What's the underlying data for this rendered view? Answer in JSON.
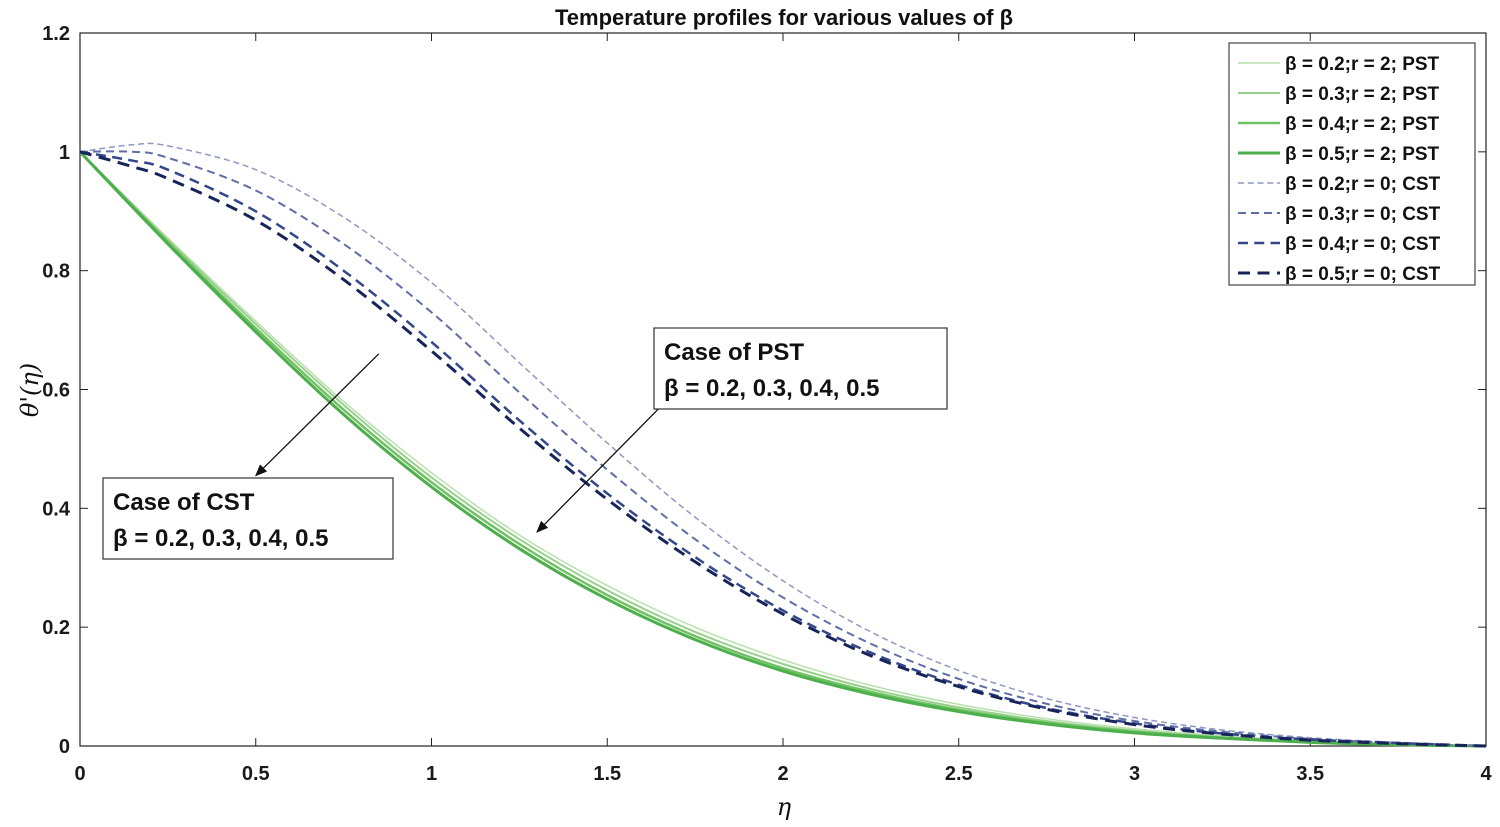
{
  "chart_data": {
    "type": "line",
    "title": "Temperature profiles for various values of β",
    "xlabel": "η",
    "ylabel": "θ'(η)",
    "xlim": [
      0,
      4
    ],
    "ylim": [
      0,
      1.2
    ],
    "x_ticks": [
      "0",
      "0.5",
      "1",
      "1.5",
      "2",
      "2.5",
      "3",
      "3.5",
      "4"
    ],
    "y_ticks": [
      "0",
      "0.2",
      "0.4",
      "0.6",
      "0.8",
      "1",
      "1.2"
    ],
    "legend_position": "top-right",
    "series": [
      {
        "name": "β = 0.2;r = 2; PST",
        "style": "solid",
        "color": "#b7e0ad",
        "width": 1.5,
        "x": [
          0,
          0.25,
          0.5,
          0.75,
          1,
          1.25,
          1.5,
          1.75,
          2,
          2.25,
          2.5,
          2.75,
          3,
          3.25,
          3.5,
          3.75,
          4
        ],
        "y": [
          1,
          0.855,
          0.715,
          0.58,
          0.46,
          0.355,
          0.27,
          0.2,
          0.145,
          0.102,
          0.07,
          0.046,
          0.029,
          0.017,
          0.009,
          0.004,
          0
        ]
      },
      {
        "name": "β = 0.3;r = 2; PST",
        "style": "solid",
        "color": "#96d18a",
        "width": 2,
        "x": [
          0,
          0.25,
          0.5,
          0.75,
          1,
          1.25,
          1.5,
          1.75,
          2,
          2.25,
          2.5,
          2.75,
          3,
          3.25,
          3.5,
          3.75,
          4
        ],
        "y": [
          1,
          0.852,
          0.71,
          0.574,
          0.452,
          0.348,
          0.262,
          0.192,
          0.138,
          0.096,
          0.065,
          0.042,
          0.026,
          0.015,
          0.008,
          0.003,
          0
        ]
      },
      {
        "name": "β = 0.4;r = 2; PST",
        "style": "solid",
        "color": "#6fc262",
        "width": 2.5,
        "x": [
          0,
          0.25,
          0.5,
          0.75,
          1,
          1.25,
          1.5,
          1.75,
          2,
          2.25,
          2.5,
          2.75,
          3,
          3.25,
          3.5,
          3.75,
          4
        ],
        "y": [
          1,
          0.848,
          0.703,
          0.566,
          0.444,
          0.34,
          0.254,
          0.185,
          0.131,
          0.091,
          0.061,
          0.039,
          0.024,
          0.014,
          0.007,
          0.003,
          0
        ]
      },
      {
        "name": "β = 0.5;r = 2; PST",
        "style": "solid",
        "color": "#4caf4c",
        "width": 3,
        "x": [
          0,
          0.25,
          0.5,
          0.75,
          1,
          1.25,
          1.5,
          1.75,
          2,
          2.25,
          2.5,
          2.75,
          3,
          3.25,
          3.5,
          3.75,
          4
        ],
        "y": [
          1,
          0.845,
          0.697,
          0.558,
          0.436,
          0.332,
          0.247,
          0.179,
          0.126,
          0.087,
          0.058,
          0.037,
          0.022,
          0.013,
          0.006,
          0.002,
          0
        ]
      },
      {
        "name": "β = 0.2;r = 0; CST",
        "style": "dashed",
        "color": "#8e98c2",
        "width": 1.5,
        "x": [
          0,
          0.15,
          0.25,
          0.5,
          0.75,
          1,
          1.25,
          1.5,
          1.75,
          2,
          2.25,
          2.5,
          2.75,
          3,
          3.25,
          3.5,
          3.75,
          4
        ],
        "y": [
          1,
          1.012,
          1.01,
          0.97,
          0.89,
          0.78,
          0.645,
          0.51,
          0.385,
          0.278,
          0.192,
          0.127,
          0.08,
          0.048,
          0.027,
          0.014,
          0.006,
          0
        ]
      },
      {
        "name": "β = 0.3;r = 0; CST",
        "style": "dashed",
        "color": "#5f6ea6",
        "width": 2,
        "x": [
          0,
          0.15,
          0.25,
          0.5,
          0.75,
          1,
          1.25,
          1.5,
          1.75,
          2,
          2.25,
          2.5,
          2.75,
          3,
          3.25,
          3.5,
          3.75,
          4
        ],
        "y": [
          1,
          1.0,
          0.99,
          0.935,
          0.845,
          0.73,
          0.595,
          0.465,
          0.348,
          0.25,
          0.172,
          0.113,
          0.071,
          0.042,
          0.024,
          0.012,
          0.005,
          0
        ]
      },
      {
        "name": "β = 0.4;r = 0; CST",
        "style": "dashed",
        "color": "#34478a",
        "width": 2.5,
        "x": [
          0,
          0.15,
          0.25,
          0.5,
          0.75,
          1,
          1.25,
          1.5,
          1.75,
          2,
          2.25,
          2.5,
          2.75,
          3,
          3.25,
          3.5,
          3.75,
          4
        ],
        "y": [
          1,
          0.985,
          0.97,
          0.9,
          0.8,
          0.68,
          0.548,
          0.425,
          0.318,
          0.228,
          0.157,
          0.103,
          0.064,
          0.038,
          0.021,
          0.011,
          0.005,
          0
        ]
      },
      {
        "name": "β = 0.5;r = 0; CST",
        "style": "dashed",
        "color": "#16245a",
        "width": 3,
        "x": [
          0,
          0.15,
          0.25,
          0.5,
          0.75,
          1,
          1.25,
          1.5,
          1.75,
          2,
          2.25,
          2.5,
          2.75,
          3,
          3.25,
          3.5,
          3.75,
          4
        ],
        "y": [
          1,
          0.975,
          0.955,
          0.885,
          0.785,
          0.665,
          0.535,
          0.415,
          0.31,
          0.222,
          0.152,
          0.1,
          0.062,
          0.036,
          0.02,
          0.01,
          0.004,
          0
        ]
      }
    ],
    "annotations": [
      {
        "id": "pst",
        "title": "Case of PST",
        "values": "β = 0.2, 0.3, 0.4, 0.5",
        "arrow_to": [
          1.3,
          0.36
        ],
        "arrow_from": [
          1.65,
          0.57
        ]
      },
      {
        "id": "cst",
        "title": "Case of CST",
        "values": "β = 0.2, 0.3, 0.4, 0.5",
        "arrow_to": [
          0.5,
          0.455
        ],
        "arrow_from": [
          0.85,
          0.66
        ]
      }
    ]
  }
}
